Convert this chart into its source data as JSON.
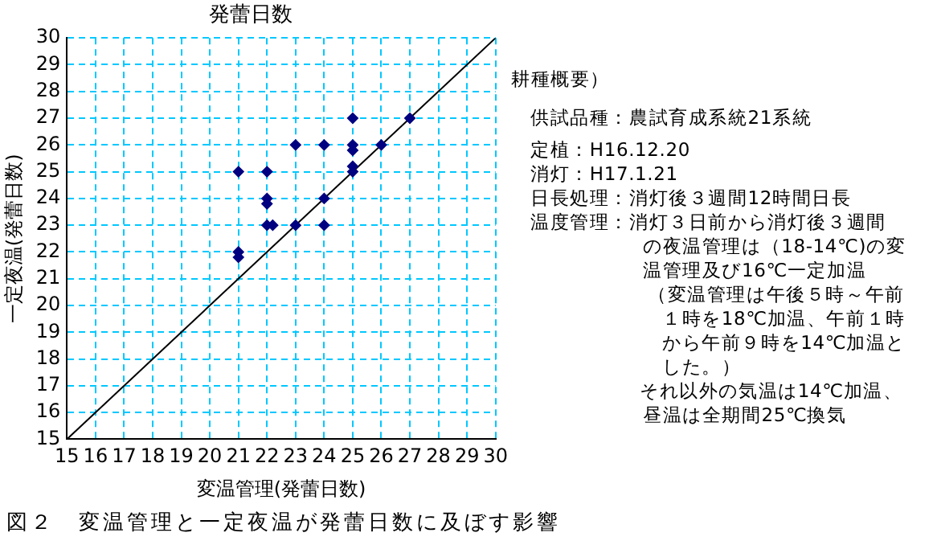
{
  "chart_data": {
    "type": "scatter",
    "title": "発蕾日数",
    "xlabel": "変温管理(発蕾日数)",
    "ylabel": "一定夜温(発蕾日数)",
    "xlim": [
      15,
      30
    ],
    "xticks": [
      15,
      16,
      17,
      18,
      19,
      20,
      21,
      22,
      23,
      24,
      25,
      26,
      27,
      28,
      29,
      30
    ],
    "ylim": [
      15,
      30
    ],
    "yticks": [
      15,
      16,
      17,
      18,
      19,
      20,
      21,
      22,
      23,
      24,
      25,
      26,
      27,
      28,
      29,
      30
    ],
    "grid": true,
    "legend": false,
    "marker": "diamond",
    "series": [
      {
        "color": "#000080",
        "x": [
          21,
          21,
          21,
          22,
          22,
          22,
          22,
          22.2,
          23,
          23,
          24,
          24,
          24,
          25,
          25,
          25,
          25,
          25,
          26,
          27
        ],
        "values": [
          25,
          22,
          21.8,
          25,
          24,
          23.8,
          23,
          23,
          26,
          23,
          26,
          24,
          23,
          27,
          26,
          25.8,
          25.2,
          25,
          26,
          27
        ]
      },
      {
        "type": "line",
        "color": "#000000",
        "marker": "none",
        "x": [
          15,
          30
        ],
        "values": [
          15,
          30
        ]
      }
    ],
    "annotations": [
      "耕種概要）",
      "供試品種：農試育成系統21系統",
      "定植：H16.12.20",
      "消灯：H17.1.21",
      "日長処理：消灯後３週間12時間日長",
      "温度管理：消灯３日前から消灯後３週間",
      "の夜温管理は（18-14℃)の変",
      "温管理及び16℃一定加温",
      "（変温管理は午後５時～午前",
      "１時を18℃加温、午前１時",
      "から午前９時を14℃加温と",
      "した。）",
      "それ以外の気温は14℃加温、",
      "昼温は全期間25℃換気",
      "図２　変温管理と一定夜温が発蕾日数に及ぼす影響"
    ]
  }
}
